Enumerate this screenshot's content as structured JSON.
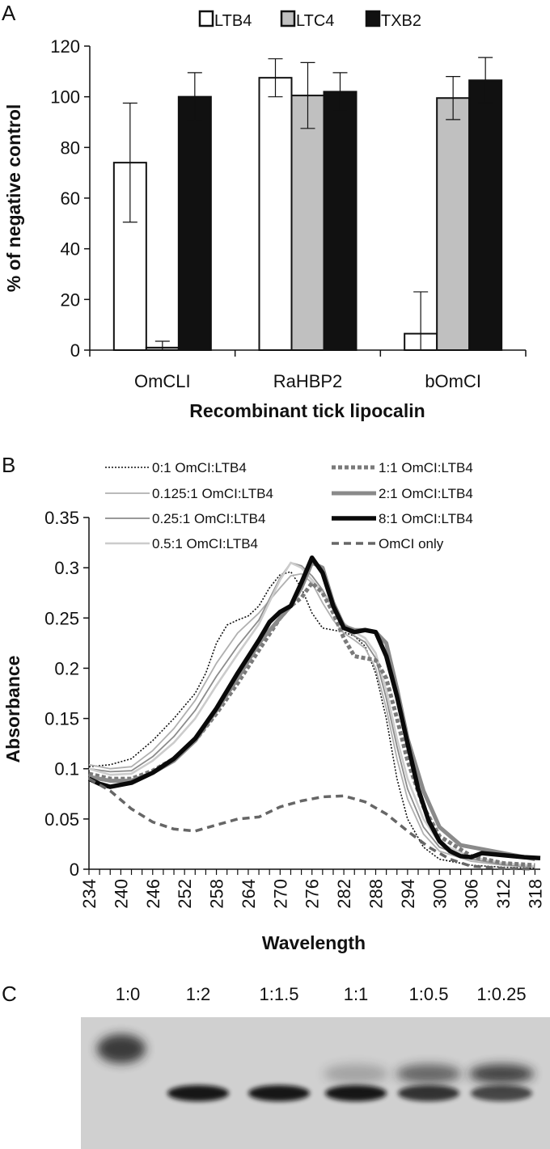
{
  "panels": [
    {
      "letter": "A"
    },
    {
      "letter": "B"
    },
    {
      "letter": "C"
    }
  ],
  "chart_data": [
    {
      "type": "bar",
      "panel": "A",
      "categories": [
        "OmCLI",
        "RaHBP2",
        "bOmCI"
      ],
      "series": [
        {
          "name": "LTB4",
          "color": "#ffffff",
          "values": [
            74,
            107.5,
            6.5
          ],
          "errors": [
            23.5,
            7.5,
            16.5
          ]
        },
        {
          "name": "LTC4",
          "color": "#c0c0c0",
          "values": [
            1,
            100.5,
            99.5
          ],
          "errors": [
            2.5,
            13,
            8.5
          ]
        },
        {
          "name": "TXB2",
          "color": "#111111",
          "values": [
            100,
            102,
            106.5
          ],
          "errors": [
            9.5,
            7.5,
            9
          ]
        }
      ],
      "xlabel": "Recombinant tick lipocalin",
      "ylabel": "% of negative control",
      "ylim": [
        0,
        120
      ],
      "yticks": [
        "0",
        "20",
        "40",
        "60",
        "80",
        "100",
        "120"
      ],
      "legend_position": "top",
      "grid": false
    },
    {
      "type": "line",
      "panel": "B",
      "xlabel": "Wavelength",
      "ylabel": "Absorbance",
      "xlim": [
        234,
        319
      ],
      "ylim": [
        0,
        0.35
      ],
      "xticks": [
        "234",
        "240",
        "246",
        "252",
        "258",
        "264",
        "270",
        "276",
        "282",
        "288",
        "294",
        "300",
        "306",
        "312",
        "318"
      ],
      "yticks": [
        "0",
        "0.05",
        "0.1",
        "0.15",
        "0.2",
        "0.25",
        "0.3",
        "0.35"
      ],
      "legend_position": "top",
      "grid": false,
      "series": [
        {
          "name": "0:1 OmCI:LTB4",
          "color": "#111111",
          "style": "dotted-thin",
          "points": [
            [
              234,
              0.102
            ],
            [
              238,
              0.104
            ],
            [
              242,
              0.11
            ],
            [
              246,
              0.128
            ],
            [
              250,
              0.15
            ],
            [
              254,
              0.175
            ],
            [
              256,
              0.195
            ],
            [
              258,
              0.225
            ],
            [
              260,
              0.243
            ],
            [
              262,
              0.248
            ],
            [
              264,
              0.252
            ],
            [
              266,
              0.262
            ],
            [
              268,
              0.28
            ],
            [
              270,
              0.293
            ],
            [
              272,
              0.296
            ],
            [
              274,
              0.28
            ],
            [
              276,
              0.255
            ],
            [
              278,
              0.24
            ],
            [
              280,
              0.238
            ],
            [
              282,
              0.236
            ],
            [
              284,
              0.232
            ],
            [
              286,
              0.222
            ],
            [
              288,
              0.195
            ],
            [
              290,
              0.15
            ],
            [
              292,
              0.09
            ],
            [
              294,
              0.05
            ],
            [
              297,
              0.022
            ],
            [
              300,
              0.01
            ],
            [
              306,
              0.004
            ],
            [
              312,
              0.002
            ],
            [
              318,
              0.001
            ]
          ]
        },
        {
          "name": "0.125:1 OmCI:LTB4",
          "color": "#b0b0b0",
          "style": "solid-thin",
          "points": [
            [
              234,
              0.104
            ],
            [
              238,
              0.1
            ],
            [
              242,
              0.102
            ],
            [
              246,
              0.118
            ],
            [
              250,
              0.14
            ],
            [
              254,
              0.168
            ],
            [
              258,
              0.205
            ],
            [
              262,
              0.235
            ],
            [
              266,
              0.255
            ],
            [
              270,
              0.28
            ],
            [
              272,
              0.292
            ],
            [
              274,
              0.294
            ],
            [
              276,
              0.285
            ],
            [
              278,
              0.265
            ],
            [
              280,
              0.248
            ],
            [
              282,
              0.235
            ],
            [
              284,
              0.228
            ],
            [
              286,
              0.22
            ],
            [
              288,
              0.2
            ],
            [
              290,
              0.16
            ],
            [
              292,
              0.11
            ],
            [
              294,
              0.07
            ],
            [
              297,
              0.035
            ],
            [
              300,
              0.018
            ],
            [
              306,
              0.008
            ],
            [
              312,
              0.004
            ],
            [
              318,
              0.002
            ]
          ]
        },
        {
          "name": "0.25:1 OmCI:LTB4",
          "color": "#8c8c8c",
          "style": "solid-thin",
          "points": [
            [
              234,
              0.1
            ],
            [
              238,
              0.097
            ],
            [
              242,
              0.098
            ],
            [
              246,
              0.112
            ],
            [
              250,
              0.132
            ],
            [
              254,
              0.158
            ],
            [
              258,
              0.192
            ],
            [
              262,
              0.222
            ],
            [
              266,
              0.248
            ],
            [
              270,
              0.29
            ],
            [
              272,
              0.305
            ],
            [
              274,
              0.302
            ],
            [
              276,
              0.292
            ],
            [
              278,
              0.278
            ],
            [
              280,
              0.258
            ],
            [
              282,
              0.24
            ],
            [
              284,
              0.232
            ],
            [
              286,
              0.226
            ],
            [
              288,
              0.21
            ],
            [
              290,
              0.17
            ],
            [
              292,
              0.122
            ],
            [
              294,
              0.08
            ],
            [
              297,
              0.042
            ],
            [
              300,
              0.022
            ],
            [
              306,
              0.01
            ],
            [
              312,
              0.005
            ],
            [
              318,
              0.002
            ]
          ]
        },
        {
          "name": "0.5:1 OmCI:LTB4",
          "color": "#cccccc",
          "style": "solid-medium",
          "points": [
            [
              234,
              0.1
            ],
            [
              238,
              0.094
            ],
            [
              242,
              0.095
            ],
            [
              246,
              0.108
            ],
            [
              250,
              0.126
            ],
            [
              254,
              0.15
            ],
            [
              258,
              0.183
            ],
            [
              262,
              0.214
            ],
            [
              266,
              0.244
            ],
            [
              270,
              0.288
            ],
            [
              272,
              0.305
            ],
            [
              274,
              0.3
            ],
            [
              276,
              0.288
            ],
            [
              278,
              0.275
            ],
            [
              280,
              0.26
            ],
            [
              282,
              0.245
            ],
            [
              284,
              0.236
            ],
            [
              286,
              0.23
            ],
            [
              288,
              0.215
            ],
            [
              290,
              0.178
            ],
            [
              292,
              0.13
            ],
            [
              294,
              0.09
            ],
            [
              297,
              0.05
            ],
            [
              300,
              0.026
            ],
            [
              306,
              0.012
            ],
            [
              312,
              0.006
            ],
            [
              318,
              0.003
            ]
          ]
        },
        {
          "name": "1:1 OmCI:LTB4",
          "color": "#7a7a7a",
          "style": "dotted-thick",
          "points": [
            [
              234,
              0.095
            ],
            [
              238,
              0.09
            ],
            [
              242,
              0.09
            ],
            [
              246,
              0.098
            ],
            [
              250,
              0.11
            ],
            [
              254,
              0.128
            ],
            [
              258,
              0.155
            ],
            [
              262,
              0.185
            ],
            [
              266,
              0.218
            ],
            [
              270,
              0.25
            ],
            [
              272,
              0.262
            ],
            [
              274,
              0.27
            ],
            [
              276,
              0.285
            ],
            [
              278,
              0.275
            ],
            [
              280,
              0.255
            ],
            [
              282,
              0.23
            ],
            [
              284,
              0.212
            ],
            [
              286,
              0.21
            ],
            [
              288,
              0.208
            ],
            [
              290,
              0.19
            ],
            [
              292,
              0.15
            ],
            [
              294,
              0.108
            ],
            [
              297,
              0.062
            ],
            [
              300,
              0.033
            ],
            [
              306,
              0.013
            ],
            [
              312,
              0.006
            ],
            [
              318,
              0.004
            ]
          ]
        },
        {
          "name": "2:1 OmCI:LTB4",
          "color": "#8a8a8a",
          "style": "solid-thick",
          "points": [
            [
              234,
              0.092
            ],
            [
              238,
              0.088
            ],
            [
              242,
              0.088
            ],
            [
              246,
              0.096
            ],
            [
              250,
              0.108
            ],
            [
              254,
              0.128
            ],
            [
              258,
              0.158
            ],
            [
              262,
              0.19
            ],
            [
              266,
              0.225
            ],
            [
              270,
              0.25
            ],
            [
              272,
              0.262
            ],
            [
              274,
              0.28
            ],
            [
              276,
              0.305
            ],
            [
              278,
              0.3
            ],
            [
              280,
              0.265
            ],
            [
              282,
              0.242
            ],
            [
              284,
              0.238
            ],
            [
              286,
              0.238
            ],
            [
              288,
              0.236
            ],
            [
              290,
              0.225
            ],
            [
              292,
              0.18
            ],
            [
              294,
              0.13
            ],
            [
              297,
              0.078
            ],
            [
              300,
              0.042
            ],
            [
              304,
              0.024
            ],
            [
              310,
              0.018
            ],
            [
              318,
              0.01
            ]
          ]
        },
        {
          "name": "8:1 OmCI:LTB4",
          "color": "#0a0a0a",
          "style": "solid-xthick",
          "points": [
            [
              234,
              0.09
            ],
            [
              236,
              0.085
            ],
            [
              238,
              0.082
            ],
            [
              242,
              0.086
            ],
            [
              246,
              0.096
            ],
            [
              250,
              0.11
            ],
            [
              254,
              0.13
            ],
            [
              258,
              0.16
            ],
            [
              262,
              0.195
            ],
            [
              266,
              0.228
            ],
            [
              268,
              0.246
            ],
            [
              270,
              0.256
            ],
            [
              272,
              0.262
            ],
            [
              274,
              0.285
            ],
            [
              276,
              0.31
            ],
            [
              278,
              0.295
            ],
            [
              280,
              0.262
            ],
            [
              282,
              0.24
            ],
            [
              284,
              0.236
            ],
            [
              286,
              0.238
            ],
            [
              288,
              0.236
            ],
            [
              290,
              0.212
            ],
            [
              292,
              0.172
            ],
            [
              294,
              0.125
            ],
            [
              296,
              0.08
            ],
            [
              298,
              0.048
            ],
            [
              300,
              0.028
            ],
            [
              302,
              0.018
            ],
            [
              304,
              0.013
            ],
            [
              306,
              0.012
            ],
            [
              308,
              0.016
            ],
            [
              312,
              0.014
            ],
            [
              316,
              0.012
            ],
            [
              319,
              0.011
            ]
          ]
        },
        {
          "name": "OmCI only",
          "color": "#666666",
          "style": "dashed-thick",
          "points": [
            [
              234,
              0.09
            ],
            [
              238,
              0.078
            ],
            [
              242,
              0.06
            ],
            [
              246,
              0.047
            ],
            [
              250,
              0.04
            ],
            [
              254,
              0.038
            ],
            [
              258,
              0.044
            ],
            [
              262,
              0.05
            ],
            [
              266,
              0.052
            ],
            [
              270,
              0.062
            ],
            [
              274,
              0.068
            ],
            [
              278,
              0.072
            ],
            [
              282,
              0.073
            ],
            [
              286,
              0.067
            ],
            [
              290,
              0.055
            ],
            [
              294,
              0.038
            ],
            [
              298,
              0.022
            ],
            [
              302,
              0.01
            ],
            [
              306,
              0.003
            ],
            [
              312,
              0.001
            ],
            [
              318,
              0.0
            ]
          ]
        }
      ]
    }
  ],
  "gel": {
    "lanes": [
      "1:0",
      "1:2",
      "1:1.5",
      "1:1",
      "1:0.5",
      "1:0.25"
    ]
  },
  "colors": {
    "axis": "#111111",
    "gel_background": "#d3d3d3",
    "band": "#111111"
  }
}
